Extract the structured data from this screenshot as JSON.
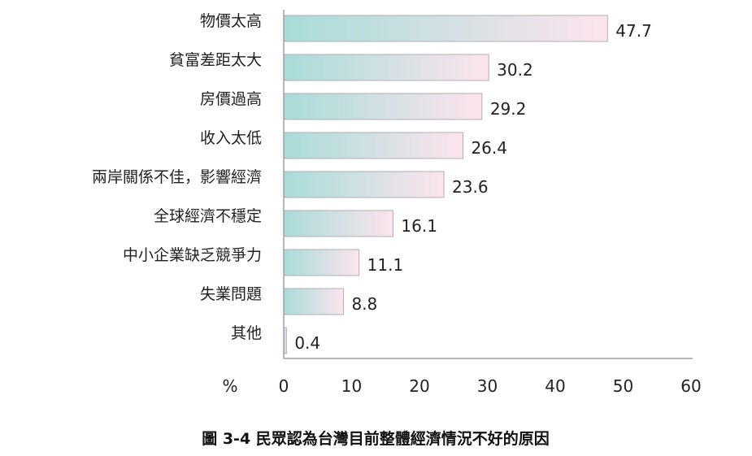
{
  "chart_data": {
    "type": "bar",
    "orientation": "horizontal",
    "categories": [
      "物價太高",
      "貧富差距太大",
      "房價過高",
      "收入太低",
      "兩岸關係不佳，影響經濟",
      "全球經濟不穩定",
      "中小企業缺乏競爭力",
      "失業問題",
      "其他"
    ],
    "values": [
      47.7,
      30.2,
      29.2,
      26.4,
      23.6,
      16.1,
      11.1,
      8.8,
      0.4
    ],
    "value_labels": [
      "47.7",
      "30.2",
      "29.2",
      "26.4",
      "23.6",
      "16.1",
      "11.1",
      "8.8",
      "0.4"
    ],
    "xlim": [
      0,
      60
    ],
    "x_ticks": [
      "0",
      "10",
      "20",
      "30",
      "40",
      "50",
      "60"
    ],
    "x_unit": "%",
    "caption": "圖 3-4  民眾認為台灣目前整體經濟情況不好的原因",
    "grid": false,
    "bar_gradient": [
      "#a8dcd8",
      "#fde4ee"
    ]
  }
}
